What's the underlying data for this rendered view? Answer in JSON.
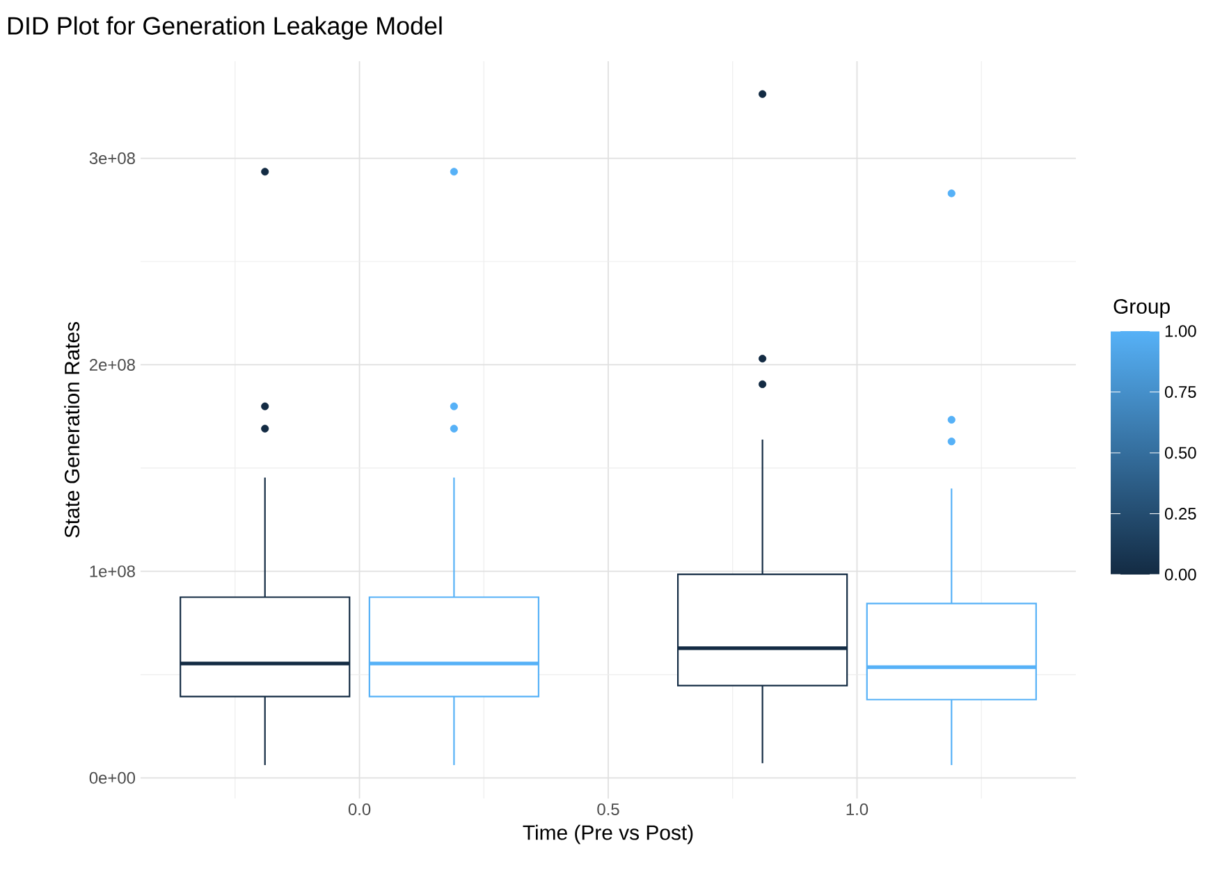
{
  "chart_data": {
    "type": "box",
    "title": "DID Plot for Generation Leakage Model",
    "xlabel": "Time (Pre vs Post)",
    "ylabel": "State Generation Rates",
    "clabel": "Group",
    "xlim": [
      -0.44,
      1.44
    ],
    "xticks": [
      {
        "value": 0,
        "label": "0.0"
      },
      {
        "value": 0.5,
        "label": "0.5"
      },
      {
        "value": 1,
        "label": "1.0"
      }
    ],
    "ylim": [
      -10000000,
      347000000
    ],
    "yticks": [
      {
        "value": 0,
        "label": "0e+00"
      },
      {
        "value": 100000000,
        "label": "1e+08"
      },
      {
        "value": 200000000,
        "label": "2e+08"
      },
      {
        "value": 300000000,
        "label": "3e+08"
      }
    ],
    "grid": true,
    "clim": [
      0,
      1
    ],
    "cticks": [
      {
        "value": 0,
        "label": "0.00"
      },
      {
        "value": 0.25,
        "label": "0.25"
      },
      {
        "value": 0.5,
        "label": "0.50"
      },
      {
        "value": 0.75,
        "label": "0.75"
      },
      {
        "value": 1,
        "label": "1.00"
      }
    ],
    "series": [
      {
        "color": "#132b43",
        "x": [
          -0.19,
          0.81
        ],
        "boxes": [
          {
            "low": 6200000,
            "q1": 39400000,
            "median": 55400000,
            "q3": 87500000,
            "high": 145400000,
            "outliers": [
              293500000,
              179900000,
              169100000
            ]
          },
          {
            "low": 7100000,
            "q1": 44700000,
            "median": 62800000,
            "q3": 98600000,
            "high": 163800000,
            "outliers": [
              331100000,
              203000000,
              190600000
            ]
          }
        ]
      },
      {
        "color": "#56b1f7",
        "x": [
          0.19,
          1.19
        ],
        "boxes": [
          {
            "low": 6200000,
            "q1": 39400000,
            "median": 55400000,
            "q3": 87500000,
            "high": 145400000,
            "outliers": [
              293500000,
              179900000,
              169100000
            ]
          },
          {
            "low": 6200000,
            "q1": 37900000,
            "median": 53600000,
            "q3": 84400000,
            "high": 140100000,
            "outliers": [
              283000000,
              173400000,
              162900000
            ]
          }
        ]
      }
    ]
  }
}
